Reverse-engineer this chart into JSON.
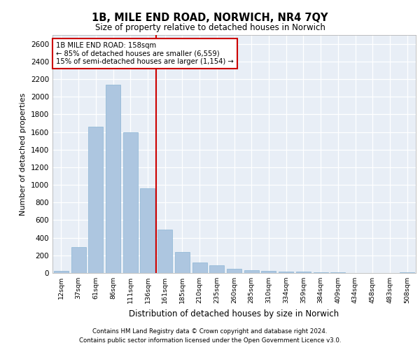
{
  "title": "1B, MILE END ROAD, NORWICH, NR4 7QY",
  "subtitle": "Size of property relative to detached houses in Norwich",
  "xlabel": "Distribution of detached houses by size in Norwich",
  "ylabel": "Number of detached properties",
  "footnote1": "Contains HM Land Registry data © Crown copyright and database right 2024.",
  "footnote2": "Contains public sector information licensed under the Open Government Licence v3.0.",
  "annotation_title": "1B MILE END ROAD: 158sqm",
  "annotation_line1": "← 85% of detached houses are smaller (6,559)",
  "annotation_line2": "15% of semi-detached houses are larger (1,154) →",
  "bar_labels": [
    "12sqm",
    "37sqm",
    "61sqm",
    "86sqm",
    "111sqm",
    "136sqm",
    "161sqm",
    "185sqm",
    "210sqm",
    "235sqm",
    "260sqm",
    "285sqm",
    "310sqm",
    "334sqm",
    "359sqm",
    "384sqm",
    "409sqm",
    "434sqm",
    "458sqm",
    "483sqm",
    "508sqm"
  ],
  "bar_values": [
    20,
    290,
    1660,
    2140,
    1600,
    960,
    490,
    240,
    120,
    90,
    45,
    30,
    20,
    15,
    12,
    8,
    5,
    3,
    2,
    0,
    5
  ],
  "bar_color": "#adc6e0",
  "bar_edge_color": "#8ab4d4",
  "vline_color": "#cc0000",
  "vline_x_index": 5.5,
  "annotation_box_color": "#cc0000",
  "background_color": "#e8eef6",
  "ylim": [
    0,
    2700
  ],
  "yticks": [
    0,
    200,
    400,
    600,
    800,
    1000,
    1200,
    1400,
    1600,
    1800,
    2000,
    2200,
    2400,
    2600
  ]
}
